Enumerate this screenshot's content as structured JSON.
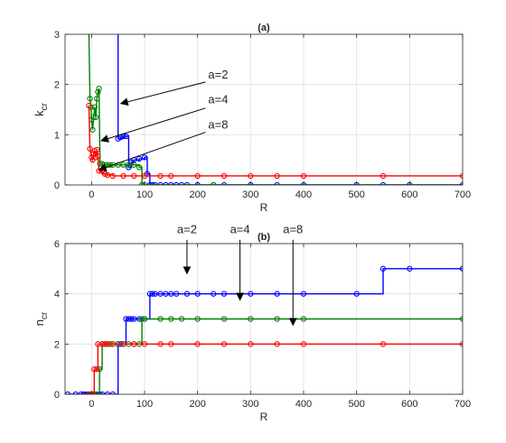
{
  "chart_data": [
    {
      "type": "line",
      "title": "(a)",
      "xlabel": "R",
      "ylabel": {
        "main": "k",
        "sub": "cr"
      },
      "xlim": [
        -50,
        700
      ],
      "ylim": [
        0,
        3
      ],
      "xticks": [
        0,
        100,
        200,
        300,
        400,
        500,
        600,
        700
      ],
      "yticks": [
        0,
        1,
        2,
        3
      ],
      "grid": true,
      "series": [
        {
          "color": "#0000ff",
          "points": [
            [
              50,
              3.05
            ],
            [
              50,
              0.92
            ],
            [
              55,
              0.92
            ],
            [
              55,
              0.95
            ],
            [
              60,
              0.95
            ],
            [
              60,
              0.97
            ],
            [
              70,
              0.97
            ],
            [
              70,
              0.35
            ],
            [
              75,
              0.35
            ],
            [
              75,
              0.45
            ],
            [
              80,
              0.45
            ],
            [
              80,
              0.5
            ],
            [
              90,
              0.5
            ],
            [
              90,
              0.52
            ],
            [
              100,
              0.52
            ],
            [
              100,
              0.55
            ],
            [
              105,
              0.55
            ],
            [
              105,
              0.22
            ],
            [
              110,
              0.22
            ],
            [
              110,
              0.0
            ],
            [
              120,
              0.0
            ],
            [
              700,
              0.0
            ]
          ],
          "markers": [
            [
              50,
              0.92
            ],
            [
              55,
              0.95
            ],
            [
              60,
              0.97
            ],
            [
              65,
              0.97
            ],
            [
              70,
              0.35
            ],
            [
              75,
              0.45
            ],
            [
              80,
              0.5
            ],
            [
              90,
              0.52
            ],
            [
              100,
              0.55
            ],
            [
              105,
              0.22
            ],
            [
              110,
              0.0
            ],
            [
              115,
              0.0
            ],
            [
              120,
              0.0
            ],
            [
              130,
              0.0
            ],
            [
              140,
              0.0
            ],
            [
              150,
              0.0
            ],
            [
              160,
              0.0
            ],
            [
              170,
              0.0
            ],
            [
              180,
              0.0
            ],
            [
              200,
              0.0
            ],
            [
              230,
              0.0
            ],
            [
              250,
              0.0
            ],
            [
              300,
              0.0
            ],
            [
              350,
              0.0
            ],
            [
              400,
              0.0
            ],
            [
              500,
              0.0
            ],
            [
              550,
              0.0
            ],
            [
              600,
              0.0
            ],
            [
              700,
              0.0
            ]
          ]
        },
        {
          "color": "#008000",
          "points": [
            [
              -5,
              3.05
            ],
            [
              -3,
              1.72
            ],
            [
              -1,
              1.55
            ],
            [
              0,
              1.3
            ],
            [
              2,
              1.1
            ],
            [
              4,
              1.35
            ],
            [
              6,
              1.55
            ],
            [
              8,
              1.35
            ],
            [
              10,
              1.72
            ],
            [
              12,
              1.85
            ],
            [
              14,
              1.92
            ],
            [
              16,
              0.42
            ],
            [
              20,
              0.42
            ],
            [
              20,
              0.4
            ],
            [
              90,
              0.4
            ],
            [
              90,
              0.35
            ],
            [
              95,
              0.35
            ],
            [
              95,
              0.0
            ],
            [
              700,
              0.0
            ]
          ],
          "markers": [
            [
              -3,
              1.72
            ],
            [
              -1,
              1.55
            ],
            [
              0,
              1.3
            ],
            [
              2,
              1.1
            ],
            [
              4,
              1.35
            ],
            [
              6,
              1.55
            ],
            [
              8,
              1.35
            ],
            [
              10,
              1.72
            ],
            [
              12,
              1.85
            ],
            [
              14,
              1.92
            ],
            [
              16,
              0.42
            ],
            [
              20,
              0.42
            ],
            [
              25,
              0.4
            ],
            [
              30,
              0.4
            ],
            [
              35,
              0.4
            ],
            [
              40,
              0.4
            ],
            [
              50,
              0.4
            ],
            [
              60,
              0.4
            ],
            [
              70,
              0.4
            ],
            [
              80,
              0.4
            ],
            [
              90,
              0.35
            ],
            [
              95,
              0.0
            ],
            [
              100,
              0.0
            ],
            [
              230,
              0.0
            ]
          ]
        },
        {
          "color": "#ff0000",
          "points": [
            [
              -5,
              1.58
            ],
            [
              -3,
              0.72
            ],
            [
              0,
              0.55
            ],
            [
              2,
              0.5
            ],
            [
              4,
              0.62
            ],
            [
              6,
              0.68
            ],
            [
              8,
              0.55
            ],
            [
              10,
              0.7
            ],
            [
              12,
              0.58
            ],
            [
              14,
              0.28
            ],
            [
              20,
              0.28
            ],
            [
              20,
              0.22
            ],
            [
              30,
              0.22
            ],
            [
              30,
              0.2
            ],
            [
              40,
              0.2
            ],
            [
              40,
              0.18
            ],
            [
              700,
              0.18
            ]
          ],
          "markers": [
            [
              -5,
              1.58
            ],
            [
              -3,
              0.72
            ],
            [
              0,
              0.55
            ],
            [
              2,
              0.5
            ],
            [
              4,
              0.62
            ],
            [
              6,
              0.68
            ],
            [
              8,
              0.55
            ],
            [
              10,
              0.7
            ],
            [
              12,
              0.58
            ],
            [
              14,
              0.28
            ],
            [
              20,
              0.28
            ],
            [
              25,
              0.22
            ],
            [
              30,
              0.2
            ],
            [
              40,
              0.18
            ],
            [
              60,
              0.18
            ],
            [
              80,
              0.18
            ],
            [
              100,
              0.18
            ],
            [
              130,
              0.18
            ],
            [
              150,
              0.18
            ],
            [
              200,
              0.18
            ],
            [
              250,
              0.18
            ],
            [
              300,
              0.18
            ],
            [
              350,
              0.18
            ],
            [
              400,
              0.18
            ],
            [
              550,
              0.18
            ],
            [
              700,
              0.18
            ]
          ]
        }
      ],
      "annotations": [
        {
          "text": "a=2",
          "label": [
            220,
            2.07
          ],
          "tail": [
            215,
            2.05
          ],
          "head": [
            55,
            1.62
          ]
        },
        {
          "text": "a=4",
          "label": [
            220,
            1.57
          ],
          "tail": [
            215,
            1.53
          ],
          "head": [
            18,
            0.88
          ]
        },
        {
          "text": "a=8",
          "label": [
            220,
            1.07
          ],
          "tail": [
            215,
            1.05
          ],
          "head": [
            14,
            0.3
          ]
        }
      ]
    },
    {
      "type": "line",
      "title": "(b)",
      "xlabel": "R",
      "ylabel": {
        "main": "n",
        "sub": "cr"
      },
      "xlim": [
        -50,
        700
      ],
      "ylim": [
        0,
        6
      ],
      "xticks": [
        0,
        100,
        200,
        300,
        400,
        500,
        600,
        700
      ],
      "yticks": [
        0,
        2,
        4,
        6
      ],
      "grid": true,
      "series": [
        {
          "color": "#0000ff",
          "points": [
            [
              -45,
              0
            ],
            [
              50,
              0
            ],
            [
              50,
              2
            ],
            [
              65,
              2
            ],
            [
              65,
              3
            ],
            [
              110,
              3
            ],
            [
              110,
              4
            ],
            [
              550,
              4
            ],
            [
              550,
              5
            ],
            [
              700,
              5
            ]
          ],
          "markers": [
            [
              -45,
              0
            ],
            [
              -30,
              0
            ],
            [
              -20,
              0
            ],
            [
              -15,
              0
            ],
            [
              -10,
              0
            ],
            [
              -8,
              0
            ],
            [
              -5,
              0
            ],
            [
              -3,
              0
            ],
            [
              0,
              0
            ],
            [
              2,
              0
            ],
            [
              5,
              0
            ],
            [
              8,
              0
            ],
            [
              10,
              0
            ],
            [
              15,
              0
            ],
            [
              20,
              0
            ],
            [
              30,
              0
            ],
            [
              40,
              0
            ],
            [
              50,
              2
            ],
            [
              55,
              2
            ],
            [
              60,
              2
            ],
            [
              65,
              3
            ],
            [
              70,
              3
            ],
            [
              75,
              3
            ],
            [
              80,
              3
            ],
            [
              90,
              3
            ],
            [
              100,
              3
            ],
            [
              110,
              4
            ],
            [
              115,
              4
            ],
            [
              120,
              4
            ],
            [
              130,
              4
            ],
            [
              140,
              4
            ],
            [
              150,
              4
            ],
            [
              160,
              4
            ],
            [
              180,
              4
            ],
            [
              200,
              4
            ],
            [
              230,
              4
            ],
            [
              250,
              4
            ],
            [
              300,
              4
            ],
            [
              350,
              4
            ],
            [
              400,
              4
            ],
            [
              500,
              4
            ],
            [
              550,
              5
            ],
            [
              600,
              5
            ],
            [
              700,
              5
            ]
          ]
        },
        {
          "color": "#008000",
          "points": [
            [
              -5,
              0
            ],
            [
              15,
              0
            ],
            [
              15,
              1
            ],
            [
              20,
              1
            ],
            [
              20,
              2
            ],
            [
              95,
              2
            ],
            [
              95,
              3
            ],
            [
              700,
              3
            ]
          ],
          "markers": [
            [
              -5,
              0
            ],
            [
              0,
              0
            ],
            [
              5,
              0
            ],
            [
              10,
              0
            ],
            [
              15,
              1
            ],
            [
              20,
              2
            ],
            [
              25,
              2
            ],
            [
              30,
              2
            ],
            [
              35,
              2
            ],
            [
              40,
              2
            ],
            [
              50,
              2
            ],
            [
              60,
              2
            ],
            [
              70,
              2
            ],
            [
              80,
              2
            ],
            [
              90,
              2
            ],
            [
              95,
              3
            ],
            [
              100,
              3
            ],
            [
              130,
              3
            ],
            [
              150,
              3
            ],
            [
              170,
              3
            ],
            [
              200,
              3
            ],
            [
              250,
              3
            ],
            [
              300,
              3
            ],
            [
              350,
              3
            ],
            [
              400,
              3
            ],
            [
              700,
              3
            ]
          ]
        },
        {
          "color": "#ff0000",
          "points": [
            [
              -5,
              0
            ],
            [
              5,
              0
            ],
            [
              5,
              1
            ],
            [
              12,
              1
            ],
            [
              12,
              2
            ],
            [
              700,
              2
            ]
          ],
          "markers": [
            [
              -5,
              0
            ],
            [
              0,
              0
            ],
            [
              5,
              1
            ],
            [
              10,
              1
            ],
            [
              12,
              2
            ],
            [
              20,
              2
            ],
            [
              25,
              2
            ],
            [
              30,
              2
            ],
            [
              40,
              2
            ],
            [
              60,
              2
            ],
            [
              80,
              2
            ],
            [
              100,
              2
            ],
            [
              130,
              2
            ],
            [
              150,
              2
            ],
            [
              200,
              2
            ],
            [
              250,
              2
            ],
            [
              300,
              2
            ],
            [
              350,
              2
            ],
            [
              400,
              2
            ],
            [
              550,
              2
            ],
            [
              700,
              2
            ]
          ]
        }
      ],
      "annotations": [
        {
          "text": "a=2",
          "label": [
            180,
            6.3
          ],
          "tail": [
            180,
            6.15
          ],
          "head": [
            180,
            4.8
          ]
        },
        {
          "text": "a=4",
          "label": [
            280,
            6.3
          ],
          "tail": [
            280,
            6.15
          ],
          "head": [
            280,
            3.75
          ]
        },
        {
          "text": "a=8",
          "label": [
            380,
            6.3
          ],
          "tail": [
            380,
            6.15
          ],
          "head": [
            380,
            2.75
          ]
        }
      ]
    }
  ]
}
